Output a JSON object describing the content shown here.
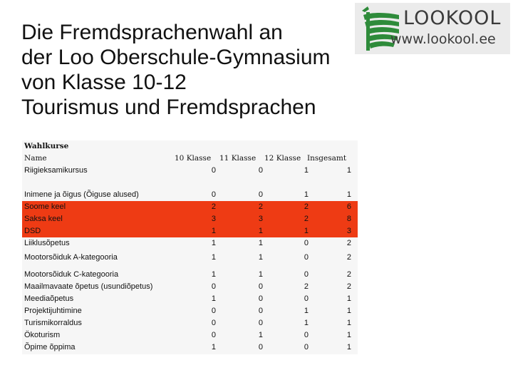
{
  "title": {
    "lines": [
      "Die Fremdsprachenwahl an",
      "der Loo Oberschule-Gymnasium",
      "von Klasse 10-12",
      "Tourismus und Fremdsprachen"
    ]
  },
  "logo": {
    "name": "LOOKOOL",
    "url": "www.lookool.ee"
  },
  "table": {
    "header_wahlkurse": "Wahlkurse",
    "header_name": "Name",
    "columns": [
      "10 Klasse",
      "11 Klasse",
      "12 Klasse",
      "Insgesamt"
    ],
    "rows": [
      {
        "name": "Riigieksamikursus",
        "values": [
          "0",
          "0",
          "1",
          "1"
        ]
      },
      {
        "name": "Inimene ja õigus (Õiguse alused)",
        "values": [
          "0",
          "0",
          "1",
          "1"
        ]
      },
      {
        "name": "Soome keel",
        "values": [
          "2",
          "2",
          "2",
          "6"
        ]
      },
      {
        "name": "Saksa keel",
        "values": [
          "3",
          "3",
          "2",
          "8"
        ]
      },
      {
        "name": "DSD",
        "values": [
          "1",
          "1",
          "1",
          "3"
        ]
      },
      {
        "name": "Liiklusõpetus",
        "values": [
          "1",
          "1",
          "0",
          "2"
        ]
      },
      {
        "name": "Mootorsõiduk A-kategooria",
        "values": [
          "1",
          "1",
          "0",
          "2"
        ]
      },
      {
        "name": "Mootorsõiduk C-kategooria",
        "values": [
          "1",
          "1",
          "0",
          "2"
        ]
      },
      {
        "name": "Maailmavaate õpetus (usundiõpetus)",
        "values": [
          "0",
          "0",
          "2",
          "2"
        ]
      },
      {
        "name": "Meediaõpetus",
        "values": [
          "1",
          "0",
          "0",
          "1"
        ]
      },
      {
        "name": "Projektijuhtimine",
        "values": [
          "0",
          "0",
          "1",
          "1"
        ]
      },
      {
        "name": "Turismikorraldus",
        "values": [
          "0",
          "0",
          "1",
          "1"
        ]
      },
      {
        "name": "Ökoturism",
        "values": [
          "0",
          "1",
          "0",
          "1"
        ]
      },
      {
        "name": "Õpime õppima",
        "values": [
          "1",
          "0",
          "0",
          "1"
        ]
      }
    ],
    "highlight_color": "#ee3b14"
  }
}
